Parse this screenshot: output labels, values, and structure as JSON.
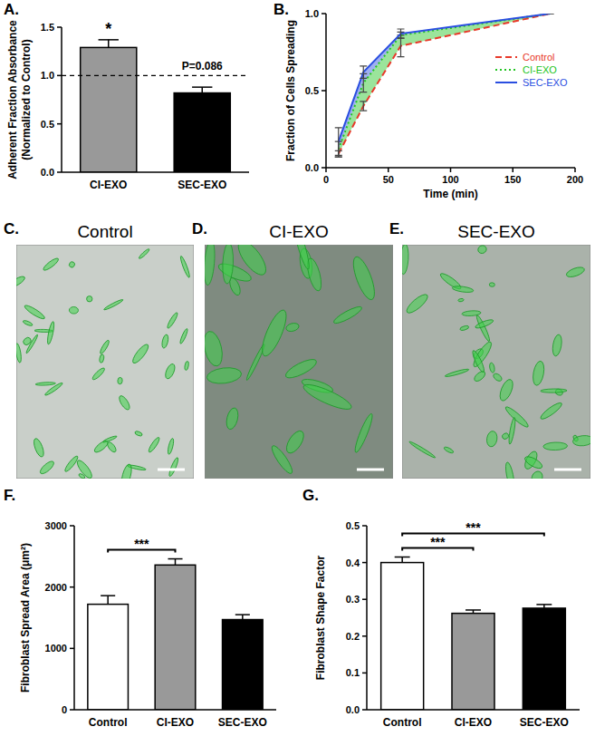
{
  "chart_data": [
    {
      "type": "bar",
      "title": "A.",
      "categories": [
        "CI-EXO",
        "SEC-EXO"
      ],
      "values": [
        1.29,
        0.82
      ],
      "errors": [
        0.08,
        0.06
      ],
      "colors": [
        "#999999",
        "#000000"
      ],
      "ylim": [
        0,
        1.5
      ],
      "yticks": [
        {
          "value": 0,
          "label": "0.0"
        },
        {
          "value": 0.5,
          "label": "0.5"
        },
        {
          "value": 1,
          "label": "1.0"
        },
        {
          "value": 1.5,
          "label": "1.5"
        }
      ],
      "y_label": [
        "Adherent Fraction Absorbance",
        "(Normalized to Control)"
      ],
      "baseline": 1,
      "annotations": [
        {
          "text": "*",
          "at": 0
        },
        {
          "text": "P=0.086",
          "at": 1
        }
      ]
    },
    {
      "type": "line",
      "title": "B.",
      "x": [
        10,
        30,
        60,
        180
      ],
      "series": [
        {
          "name": "Control",
          "color": "#e8392a",
          "line_style": "dashed",
          "values": [
            0.09,
            0.4,
            0.79,
            1
          ],
          "errors": [
            0.02,
            0.03,
            0.07,
            0
          ]
        },
        {
          "name": "CI-EXO",
          "color": "#22c422",
          "line_style": "dotted",
          "values": [
            0.12,
            0.55,
            0.86,
            1
          ],
          "errors": [
            0.05,
            0.06,
            0.02,
            0
          ]
        },
        {
          "name": "SEC-EXO",
          "color": "#2a4ee0",
          "line_style": "solid",
          "values": [
            0.17,
            0.62,
            0.87,
            1
          ],
          "errors": [
            0.09,
            0.04,
            0.03,
            0
          ]
        }
      ],
      "xlim": [
        0,
        200
      ],
      "xticks": [
        0,
        50,
        100,
        150,
        200
      ],
      "ylim": [
        0,
        1
      ],
      "yticks": [
        {
          "value": 0,
          "label": "0.0"
        },
        {
          "value": 0.5,
          "label": "0.5"
        },
        {
          "value": 1,
          "label": "1.0"
        }
      ],
      "x_label": "Time (min)",
      "y_label": "Fraction of Cells Spreading",
      "legend": "right"
    },
    {
      "type": "bar",
      "title": "F.",
      "categories": [
        "Control",
        "CI-EXO",
        "SEC-EXO"
      ],
      "values": [
        1720,
        2360,
        1470
      ],
      "errors": [
        140,
        100,
        80
      ],
      "colors": [
        "#ffffff",
        "#999999",
        "#000000"
      ],
      "ylim": [
        0,
        3000
      ],
      "yticks": [
        0,
        1000,
        2000,
        3000
      ],
      "y_label": "Fibroblast Spread Area (μm²)",
      "annotations": [
        {
          "text": "***",
          "from": 0,
          "to": 1
        }
      ]
    },
    {
      "type": "bar",
      "title": "G.",
      "categories": [
        "Control",
        "CI-EXO",
        "SEC-EXO"
      ],
      "values": [
        0.4,
        0.262,
        0.276
      ],
      "errors": [
        0.015,
        0.009,
        0.01
      ],
      "colors": [
        "#ffffff",
        "#999999",
        "#000000"
      ],
      "ylim": [
        0,
        0.5
      ],
      "yticks": [
        {
          "value": 0,
          "label": "0.0"
        },
        {
          "value": 0.1,
          "label": "0.1"
        },
        {
          "value": 0.2,
          "label": "0.2"
        },
        {
          "value": 0.3,
          "label": "0.3"
        },
        {
          "value": 0.4,
          "label": "0.4"
        },
        {
          "value": 0.5,
          "label": "0.5"
        }
      ],
      "y_label": "Fibroblast Shape Factor",
      "annotations": [
        {
          "text": "***",
          "from": 0,
          "to": 1
        },
        {
          "text": "***",
          "from": 0,
          "to": 2
        }
      ]
    }
  ],
  "images": [
    {
      "label": "C.",
      "title": "Control"
    },
    {
      "label": "D.",
      "title": "CI-EXO"
    },
    {
      "label": "E.",
      "title": "SEC-EXO"
    }
  ]
}
